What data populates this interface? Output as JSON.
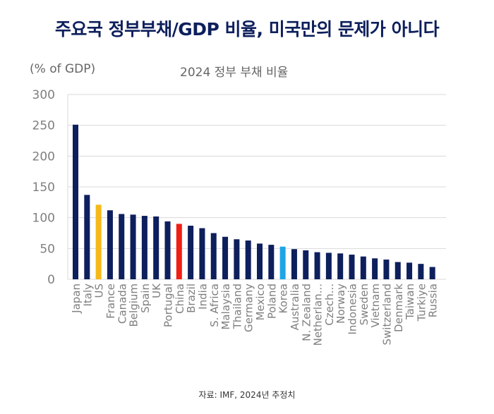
{
  "header": {
    "title": "주요국 정부부채/GDP 비율, 미국만의 문제가 아니다"
  },
  "footer": {
    "source": "자료: IMF, 2024년 추정치"
  },
  "chart_data": {
    "type": "bar",
    "title": "2024 정부 부채 비율",
    "ylabel": "(% of GDP)",
    "xlabel": "",
    "ylim": [
      0,
      300
    ],
    "yticks": [
      0,
      50,
      100,
      150,
      200,
      250,
      300
    ],
    "grid": true,
    "legend": "none",
    "colors": {
      "default": "#0d1f5c",
      "US": "#f5b919",
      "China": "#f01e14",
      "Korea": "#1ea5e6",
      "grid": "#d9d9d9",
      "tick_text": "#7f7f7f"
    },
    "categories": [
      "Japan",
      "Italy",
      "US",
      "France",
      "Canada",
      "Belgium",
      "Spain",
      "UK",
      "Portugal",
      "China",
      "Brazil",
      "India",
      "S. Africa",
      "Malaysia",
      "Thailand",
      "Germany",
      "Mexico",
      "Poland",
      "Korea",
      "Australia",
      "N. Zealand",
      "Netherlan...",
      "Czech...",
      "Norway",
      "Indonesia",
      "Sweden",
      "Vietnam",
      "Switzerland",
      "Denmark",
      "Taiwan",
      "Turkiye",
      "Russia"
    ],
    "values": [
      251,
      137,
      121,
      112,
      106,
      105,
      103,
      102,
      94,
      90,
      87,
      83,
      75,
      69,
      65,
      63,
      58,
      56,
      53,
      49,
      47,
      44,
      43,
      42,
      40,
      37,
      34,
      32,
      28,
      27,
      25,
      20
    ]
  }
}
